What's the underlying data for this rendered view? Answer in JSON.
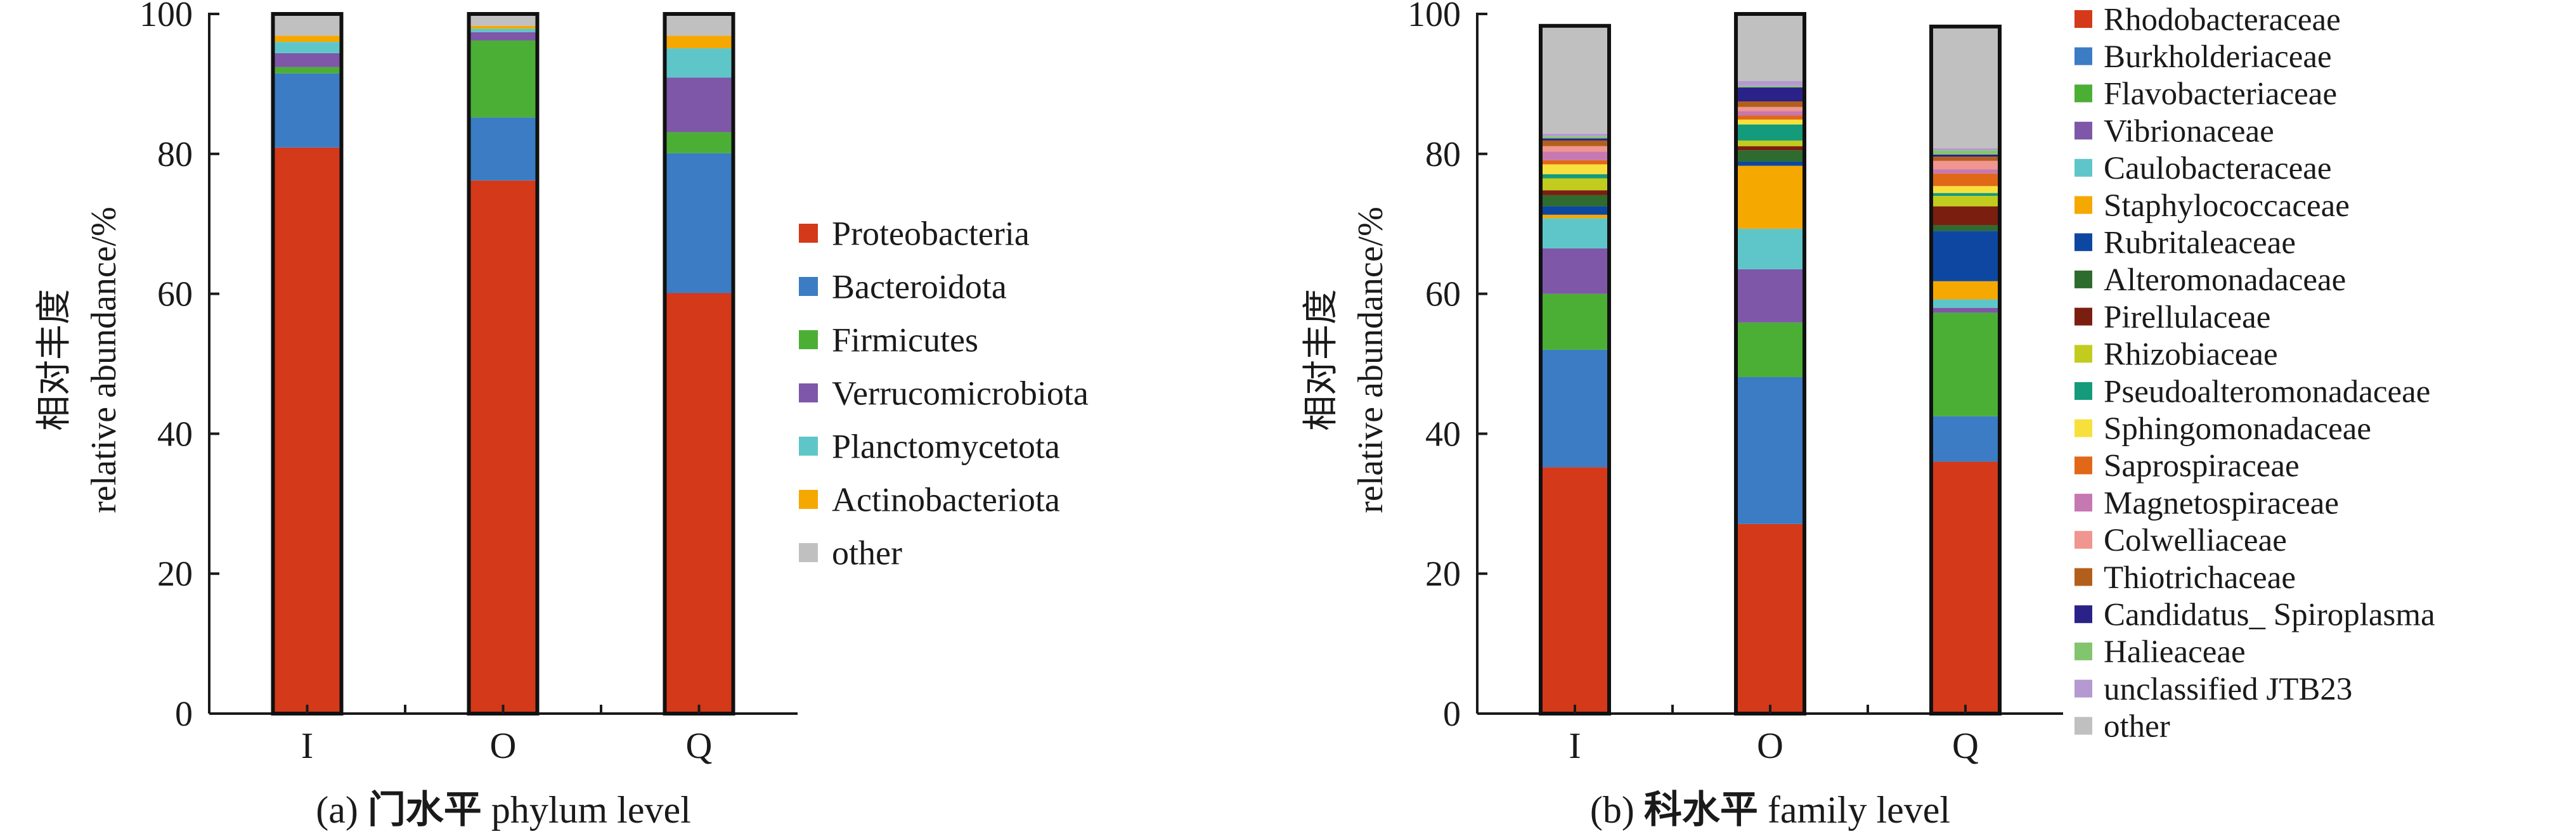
{
  "chart_data": [
    {
      "type": "bar",
      "stacked": true,
      "caption_prefix": "(a) ",
      "caption_cn": "门水平",
      "caption_en": " phylum level",
      "ylabel_cn": "相对丰度",
      "ylabel_en": "relative abundance/%",
      "ylim": [
        0,
        100
      ],
      "yticks": [
        "0",
        "20",
        "40",
        "60",
        "80",
        "100"
      ],
      "categories": [
        "I",
        "O",
        "Q"
      ],
      "legend_position": "right",
      "series": [
        {
          "name": "Proteobacteria",
          "color": "#d4391a",
          "values": [
            80.9,
            76.2,
            60.1
          ]
        },
        {
          "name": "Bacteroidota",
          "color": "#3b7cc4",
          "values": [
            10.6,
            9.0,
            20.0
          ]
        },
        {
          "name": "Firmicutes",
          "color": "#4caf35",
          "values": [
            0.9,
            11.0,
            3.0
          ]
        },
        {
          "name": "Verrucomicrobiota",
          "color": "#7e57a8",
          "values": [
            2.0,
            1.2,
            7.8
          ]
        },
        {
          "name": "Planctomycetota",
          "color": "#5ec6c9",
          "values": [
            1.6,
            0.5,
            4.2
          ]
        },
        {
          "name": "Actinobacteriota",
          "color": "#f5a800",
          "values": [
            0.9,
            0.4,
            1.8
          ]
        },
        {
          "name": "other",
          "color": "#c0c0c0",
          "values": [
            3.1,
            1.7,
            3.1
          ]
        }
      ]
    },
    {
      "type": "bar",
      "stacked": true,
      "caption_prefix": "(b) ",
      "caption_cn": "科水平",
      "caption_en": " family level",
      "ylabel_cn": "相对丰度",
      "ylabel_en": "relative abundance/%",
      "ylim": [
        0,
        100
      ],
      "yticks": [
        "0",
        "20",
        "40",
        "60",
        "80",
        "100"
      ],
      "categories": [
        "I",
        "O",
        "Q"
      ],
      "legend_position": "right",
      "series": [
        {
          "name": "Rhodobacteraceae",
          "color": "#d4391a",
          "values": [
            35.2,
            27.1,
            36.0
          ]
        },
        {
          "name": "Burkholderiaceae",
          "color": "#3b7cc4",
          "values": [
            16.8,
            21.0,
            6.5
          ]
        },
        {
          "name": "Flavobacteriaceae",
          "color": "#4caf35",
          "values": [
            8.0,
            7.8,
            14.8
          ]
        },
        {
          "name": "Vibrionaceae",
          "color": "#7e57a8",
          "values": [
            6.5,
            7.6,
            0.7
          ]
        },
        {
          "name": "Caulobacteraceae",
          "color": "#5ec6c9",
          "values": [
            4.3,
            5.8,
            1.2
          ]
        },
        {
          "name": "Staphylococcaceae",
          "color": "#f5a800",
          "values": [
            0.5,
            9.0,
            2.6
          ]
        },
        {
          "name": "Rubritaleaceae",
          "color": "#0d47a1",
          "values": [
            1.2,
            0.6,
            7.2
          ]
        },
        {
          "name": "Alteromonadaceae",
          "color": "#2e6b2e",
          "values": [
            1.6,
            1.6,
            0.8
          ]
        },
        {
          "name": "Pirellulaceae",
          "color": "#7a1f10",
          "values": [
            0.7,
            0.6,
            2.7
          ]
        },
        {
          "name": "Rhizobiaceae",
          "color": "#c2cc1e",
          "values": [
            1.7,
            0.8,
            1.5
          ]
        },
        {
          "name": "Pseudoalteromonadaceae",
          "color": "#139b7c",
          "values": [
            0.6,
            2.3,
            0.4
          ]
        },
        {
          "name": "Sphingomonadaceae",
          "color": "#f7e03c",
          "values": [
            1.4,
            0.7,
            1.0
          ]
        },
        {
          "name": "Saprospiraceae",
          "color": "#e06818",
          "values": [
            0.6,
            0.6,
            1.8
          ]
        },
        {
          "name": "Magnetospiraceae",
          "color": "#c678b2",
          "values": [
            1.2,
            0.6,
            0.6
          ]
        },
        {
          "name": "Colwelliaceae",
          "color": "#f0958f",
          "values": [
            0.8,
            0.6,
            1.2
          ]
        },
        {
          "name": "Thiotrichaceae",
          "color": "#b35f1c",
          "values": [
            0.8,
            0.8,
            0.6
          ]
        },
        {
          "name": "Candidatus_ Spiroplasma",
          "color": "#2b2289",
          "values": [
            0.3,
            2.0,
            0.3
          ]
        },
        {
          "name": "Halieaceae",
          "color": "#82c56e",
          "values": [
            0.3,
            0.2,
            0.6
          ]
        },
        {
          "name": "unclassified JTB23",
          "color": "#b49ad1",
          "values": [
            0.4,
            0.7,
            0.3
          ]
        },
        {
          "name": "other",
          "color": "#c0c0c0",
          "values": [
            15.4,
            9.6,
            17.4
          ]
        }
      ]
    }
  ]
}
